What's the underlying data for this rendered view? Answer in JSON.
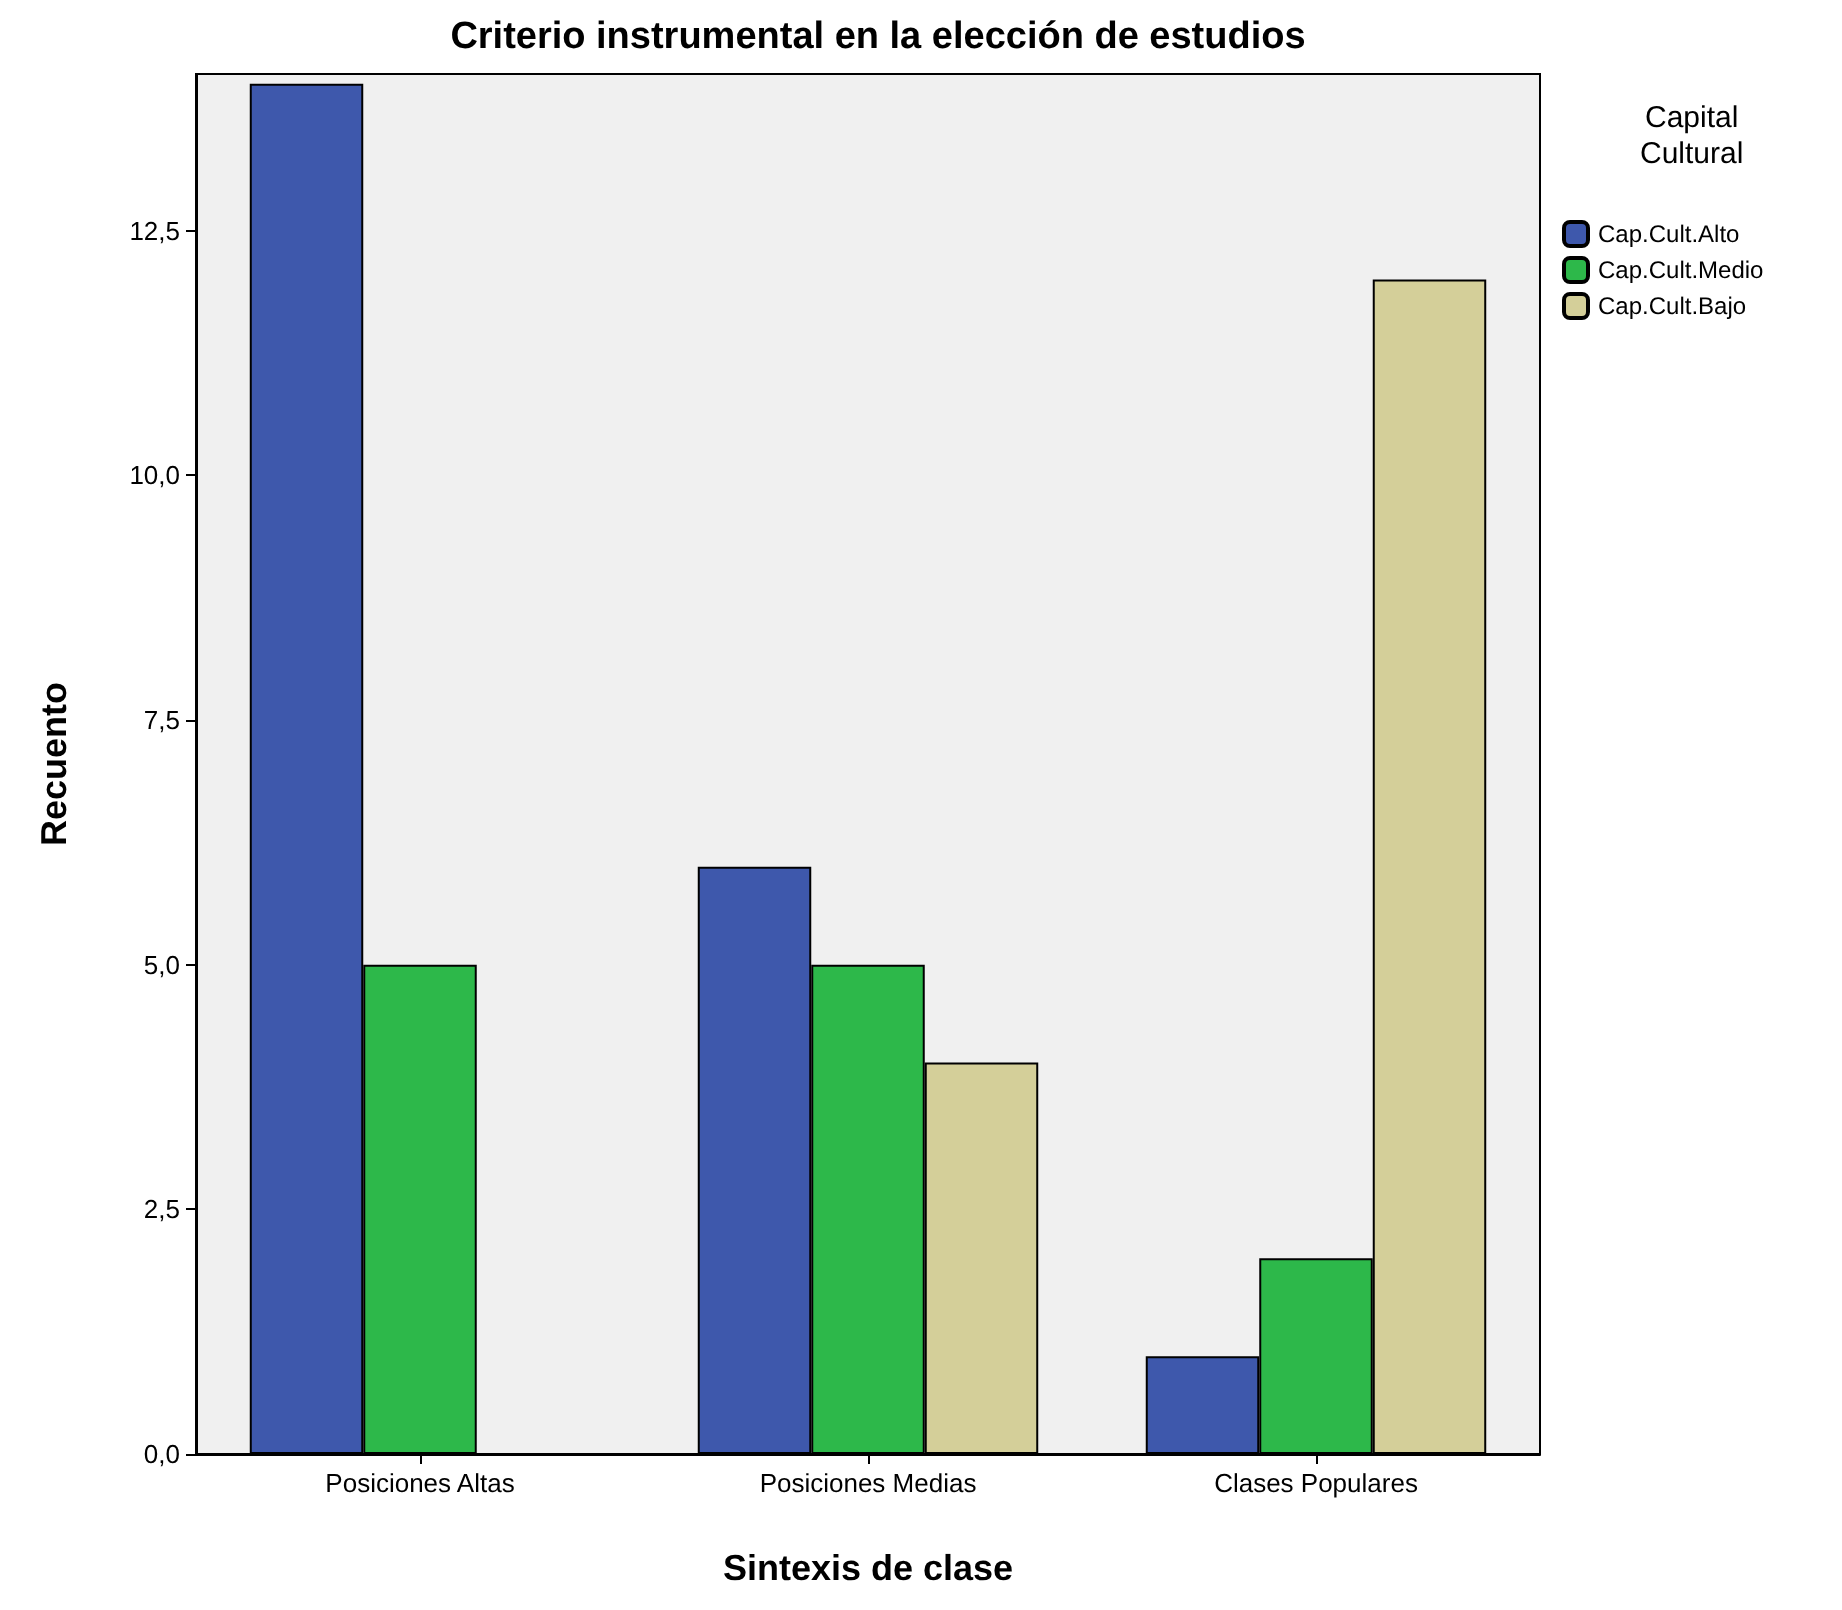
{
  "chart_data": {
    "type": "bar",
    "title": "Criterio instrumental en la elección de estudios",
    "xlabel": "Sintexis de clase",
    "ylabel": "Recuento",
    "legend_title": "Capital\nCultural",
    "categories": [
      "Posiciones Altas",
      "Posiciones Medias",
      "Clases Populares"
    ],
    "series": [
      {
        "name": "Cap.Cult.Alto",
        "color": "#3e58ac",
        "values": [
          14,
          6,
          1
        ]
      },
      {
        "name": "Cap.Cult.Medio",
        "color": "#2db84a",
        "values": [
          5,
          5,
          2
        ]
      },
      {
        "name": "Cap.Cult.Bajo",
        "color": "#d4cf99",
        "values": [
          null,
          4,
          12
        ]
      }
    ],
    "ylim": [
      0,
      14.1
    ],
    "yticks": [
      {
        "value": 0,
        "label": "0,0"
      },
      {
        "value": 2.5,
        "label": "2,5"
      },
      {
        "value": 5,
        "label": "5,0"
      },
      {
        "value": 7.5,
        "label": "7,5"
      },
      {
        "value": 10,
        "label": "10,0"
      },
      {
        "value": 12.5,
        "label": "12,5"
      }
    ],
    "grid": false,
    "legend": "right"
  }
}
